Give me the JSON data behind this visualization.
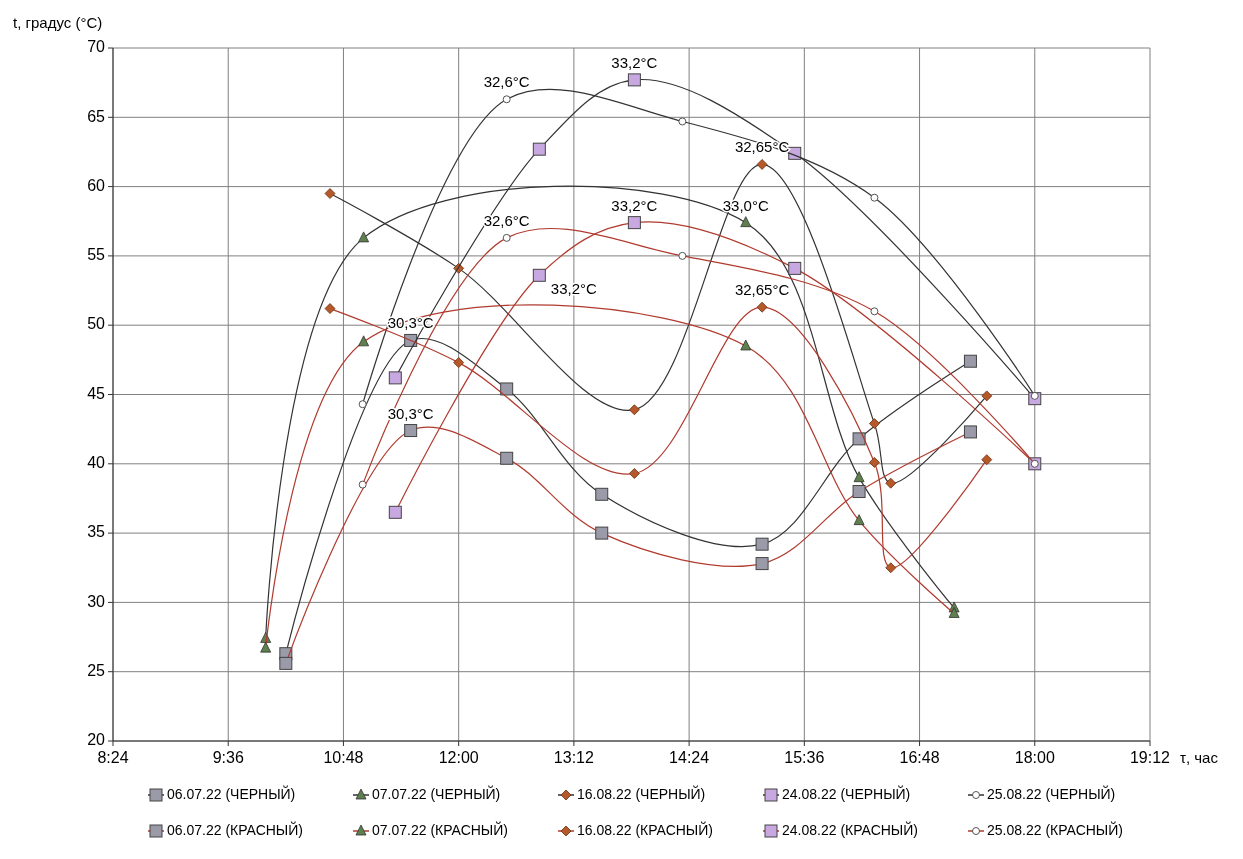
{
  "chart_data": {
    "type": "line",
    "xlabel": "τ, час",
    "ylabel": "t, градус (°C)",
    "xlim": [
      8.4,
      19.2
    ],
    "xticks": [
      {
        "value": 8.4,
        "label": "8:24"
      },
      {
        "value": 9.6,
        "label": "9:36"
      },
      {
        "value": 10.8,
        "label": "10:48"
      },
      {
        "value": 12,
        "label": "12:00"
      },
      {
        "value": 13.2,
        "label": "13:12"
      },
      {
        "value": 14.4,
        "label": "14:24"
      },
      {
        "value": 15.6,
        "label": "15:36"
      },
      {
        "value": 16.8,
        "label": "16:48"
      },
      {
        "value": 18,
        "label": "18:00"
      },
      {
        "value": 19.2,
        "label": "19:12"
      }
    ],
    "ylim": [
      20,
      70
    ],
    "yticks": [
      20,
      25,
      30,
      35,
      40,
      45,
      50,
      55,
      60,
      65,
      70
    ],
    "grid": true,
    "legend": "bottom",
    "line_style": "solid",
    "series": [
      {
        "name": "06.07.22 (ЧЕРНЫЙ)",
        "color": "#333333",
        "marker": "square",
        "colors": [
          "#9a9aa8",
          "#9a9aa8",
          "#9a9aa8",
          "#9a9aa8",
          "#9a9aa8",
          "#9a9aa8",
          "#9a9aa8"
        ],
        "x": [
          10.2,
          11.5,
          12.5,
          13.49,
          15.16,
          16.17,
          17.33
        ],
        "values": [
          26.3,
          48.9,
          45.4,
          37.8,
          34.2,
          41.8,
          47.4
        ]
      },
      {
        "name": "07.07.22 (ЧЕРНЫЙ)",
        "color": "#333333",
        "marker": "triangle",
        "colors": [
          "#5e7f4e",
          "#5e7f4e",
          "#5e7f4e",
          "#5e7f4e",
          "#5e7f4e"
        ],
        "x": [
          9.99,
          11.01,
          14.99,
          16.17,
          17.16
        ],
        "values": [
          27.4,
          56.3,
          57.4,
          39.0,
          29.6
        ]
      },
      {
        "name": "16.08.22 (ЧЕРНЫЙ)",
        "color": "#333333",
        "marker": "diamond",
        "colors": [
          "#b5582a",
          "#b5582a",
          "#b5582a",
          "#b5582a",
          "#b5582a",
          "#b5582a",
          "#b5582a"
        ],
        "x": [
          10.66,
          12.0,
          13.83,
          15.16,
          16.33,
          16.5,
          17.5
        ],
        "values": [
          59.5,
          54.1,
          43.9,
          61.6,
          42.9,
          38.6,
          44.9
        ]
      },
      {
        "name": "24.08.22 (ЧЕРНЫЙ)",
        "color": "#333333",
        "marker": "square",
        "colors": [
          "#c8a8e0",
          "#c8a8e0",
          "#c8a8e0",
          "#c8a8e0",
          "#c8a8e0"
        ],
        "x": [
          11.34,
          12.84,
          13.83,
          15.5,
          18.0
        ],
        "values": [
          46.2,
          62.7,
          67.7,
          62.4,
          44.7
        ]
      },
      {
        "name": "25.08.22 (ЧЕРНЫЙ)",
        "color": "#333333",
        "marker": "circle",
        "colors": [
          "#ffffff",
          "#ffffff",
          "#ffffff",
          "#ffffff",
          "#ffffff"
        ],
        "x": [
          11.0,
          12.5,
          14.33,
          16.33,
          18.0
        ],
        "values": [
          44.3,
          66.3,
          64.7,
          59.2,
          44.9
        ]
      },
      {
        "name": "06.07.22 (КРАСНЫЙ)",
        "color": "#b03a2e",
        "marker": "square",
        "colors": [
          "#9a9aa8",
          "#9a9aa8",
          "#9a9aa8",
          "#9a9aa8",
          "#9a9aa8",
          "#9a9aa8",
          "#9a9aa8"
        ],
        "x": [
          10.2,
          11.5,
          12.5,
          13.49,
          15.16,
          16.17,
          17.33
        ],
        "values": [
          25.6,
          42.4,
          40.4,
          35.0,
          32.8,
          38.0,
          42.3
        ]
      },
      {
        "name": "07.07.22 (КРАСНЫЙ)",
        "color": "#b03a2e",
        "marker": "triangle",
        "colors": [
          "#5e7f4e",
          "#5e7f4e",
          "#5e7f4e",
          "#5e7f4e",
          "#5e7f4e"
        ],
        "x": [
          9.99,
          11.01,
          14.99,
          16.17,
          17.16
        ],
        "values": [
          26.7,
          48.8,
          48.5,
          35.9,
          29.2
        ]
      },
      {
        "name": "16.08.22 (КРАСНЫЙ)",
        "color": "#b03a2e",
        "marker": "diamond",
        "colors": [
          "#b5582a",
          "#b5582a",
          "#b5582a",
          "#b5582a",
          "#b5582a",
          "#b5582a",
          "#b5582a"
        ],
        "x": [
          10.66,
          12.0,
          13.83,
          15.16,
          16.33,
          16.5,
          17.5
        ],
        "values": [
          51.2,
          47.3,
          39.3,
          51.3,
          40.1,
          32.5,
          40.3
        ]
      },
      {
        "name": "24.08.22 (КРАСНЫЙ)",
        "color": "#b03a2e",
        "marker": "square",
        "colors": [
          "#c8a8e0",
          "#c8a8e0",
          "#c8a8e0",
          "#c8a8e0",
          "#c8a8e0"
        ],
        "x": [
          11.34,
          12.84,
          13.83,
          15.5,
          18.0
        ],
        "values": [
          36.5,
          53.6,
          57.4,
          54.1,
          40.0
        ]
      },
      {
        "name": "25.08.22 (КРАСНЫЙ)",
        "color": "#b03a2e",
        "marker": "circle",
        "colors": [
          "#ffffff",
          "#ffffff",
          "#ffffff",
          "#ffffff",
          "#ffffff"
        ],
        "x": [
          11.0,
          12.5,
          14.33,
          16.33,
          18.0
        ],
        "values": [
          38.5,
          56.3,
          55.0,
          51.0,
          40.0
        ]
      }
    ],
    "annotations": [
      {
        "text": "32,6°C",
        "x": 12.5,
        "y": 66.3
      },
      {
        "text": "33,2°C",
        "x": 13.83,
        "y": 67.7
      },
      {
        "text": "32,65°C",
        "x": 15.16,
        "y": 61.6
      },
      {
        "text": "32,6°C",
        "x": 12.5,
        "y": 56.3
      },
      {
        "text": "33,2°C",
        "x": 13.83,
        "y": 57.4
      },
      {
        "text": "33,0°C",
        "x": 14.99,
        "y": 57.4
      },
      {
        "text": "33,2°C",
        "x": 13.2,
        "y": 51.4
      },
      {
        "text": "32,65°C",
        "x": 15.16,
        "y": 51.3
      },
      {
        "text": "30,3°C",
        "x": 11.5,
        "y": 48.9
      },
      {
        "text": "30,3°C",
        "x": 11.5,
        "y": 42.4
      }
    ]
  }
}
